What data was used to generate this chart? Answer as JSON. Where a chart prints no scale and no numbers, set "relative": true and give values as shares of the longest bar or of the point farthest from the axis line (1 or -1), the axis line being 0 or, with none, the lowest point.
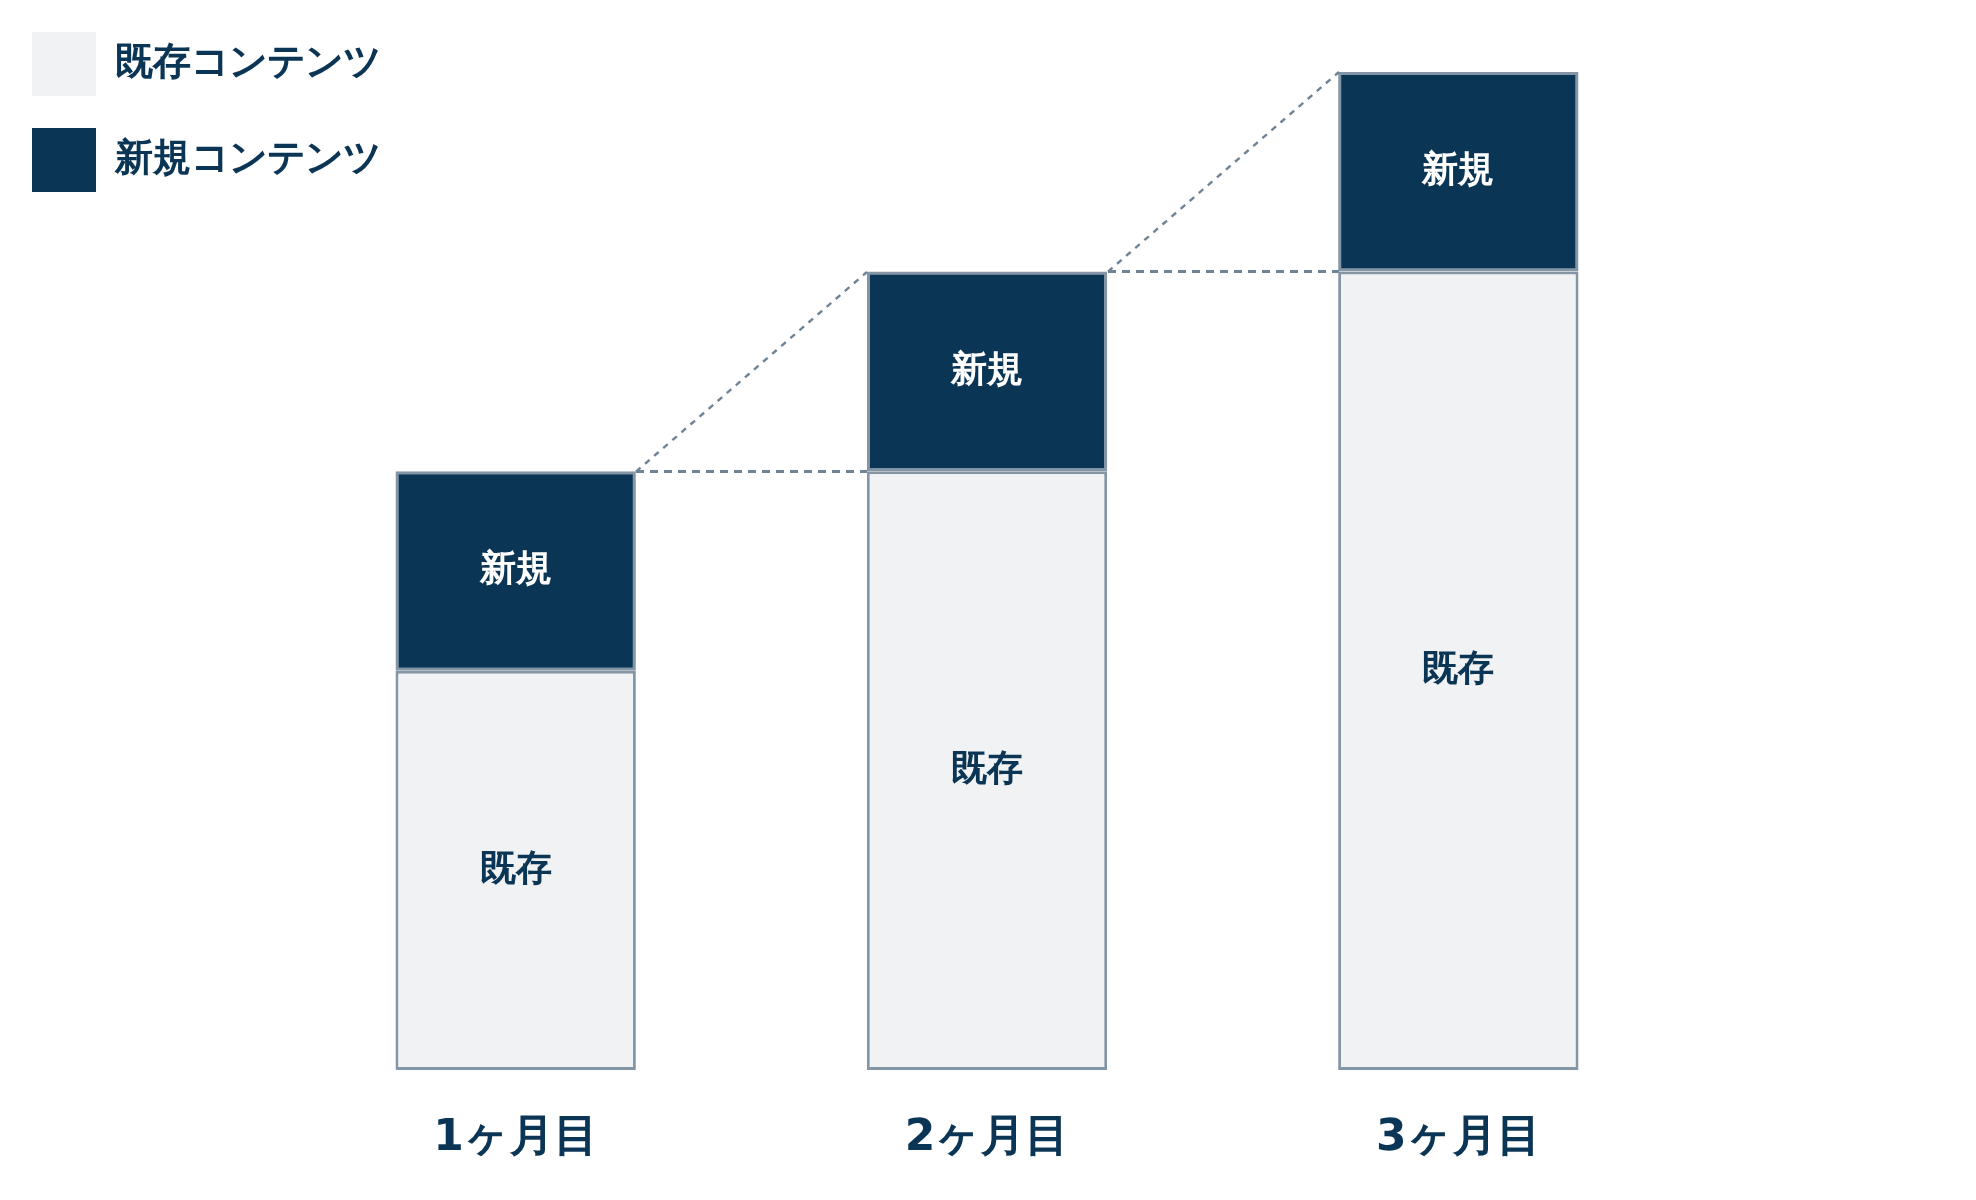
{
  "chart_data": {
    "type": "bar",
    "stacked": true,
    "relative": true,
    "legend": "top left",
    "grid": false,
    "categories": [
      "1ヶ月目",
      "2ヶ月目",
      "3ヶ月目"
    ],
    "series": [
      {
        "name": "既存コンテンツ",
        "color": "#f1f2f4",
        "values": [
          0.4,
          0.6,
          0.8
        ]
      },
      {
        "name": "新規コンテンツ",
        "color": "#0b3555",
        "values": [
          0.2,
          0.2,
          0.2
        ]
      }
    ],
    "annotations": [
      "既存",
      "新規",
      "既存",
      "新規",
      "既存",
      "新規"
    ]
  }
}
